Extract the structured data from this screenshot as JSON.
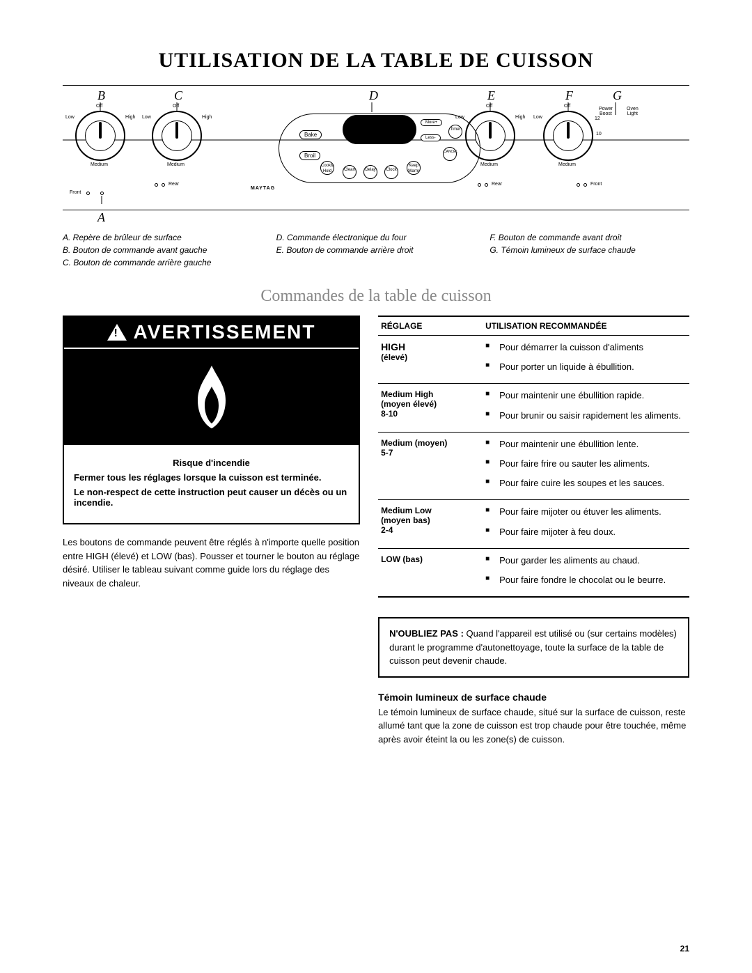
{
  "title": "UTILISATION DE LA TABLE DE CUISSON",
  "diagram": {
    "labels": {
      "A": "A",
      "B": "B",
      "C": "C",
      "D": "D",
      "E": "E",
      "F": "F",
      "G": "G"
    },
    "knob_text": {
      "off": "Off",
      "low": "Low",
      "high": "High",
      "medium": "Medium"
    },
    "center": {
      "bake": "Bake",
      "broil": "Broil",
      "cook_hold": "Cook&\nHold",
      "clean": "Clean",
      "delay": "Delay",
      "clock": "Clock",
      "keep_warm": "Keep\nWarm",
      "cancel": "CANCEL",
      "more": "More+",
      "less": "Less-",
      "timer": "Timer",
      "brand": "MAYTAG"
    },
    "right_labels": {
      "power_boost": "Power\nBoost",
      "oven_light": "Oven\nLight"
    },
    "bottom": {
      "front": "Front",
      "rear": "Rear"
    }
  },
  "legend": {
    "A": "A. Repère de brûleur de surface",
    "B": "B. Bouton de commande avant gauche",
    "C": "C. Bouton de commande arrière gauche",
    "D": "D. Commande électronique du four",
    "E": "E. Bouton de commande arrière droit",
    "F": "F. Bouton de commande avant droit",
    "G": "G. Témoin lumineux de surface chaude"
  },
  "subsection_title": "Commandes de la table de cuisson",
  "warning": {
    "header": "AVERTISSEMENT",
    "risk": "Risque d'incendie",
    "line1": "Fermer tous les réglages lorsque la cuisson est terminée.",
    "line2": "Le non-respect de cette instruction peut causer un décès ou un incendie."
  },
  "body_para": "Les boutons de commande peuvent être réglés à n'importe quelle position entre HIGH (élevé) et LOW (bas). Pousser et tourner le bouton au réglage désiré. Utiliser le tableau suivant comme guide lors du réglage des niveaux de chaleur.",
  "table": {
    "headers": {
      "setting": "RÉGLAGE",
      "use": "UTILISATION RECOMMANDÉE"
    },
    "rows": [
      {
        "setting_main": "HIGH",
        "setting_sub": "(élevé)",
        "uses": [
          "Pour démarrer la cuisson d'aliments",
          "Pour porter un liquide à ébullition."
        ]
      },
      {
        "setting_main": "Medium High",
        "setting_sub": "(moyen élevé)\n8-10",
        "uses": [
          "Pour maintenir une ébullition rapide.",
          "Pour brunir ou saisir rapidement les aliments."
        ]
      },
      {
        "setting_main": "Medium (moyen)",
        "setting_sub": "5-7",
        "uses": [
          "Pour maintenir une ébullition lente.",
          "Pour faire frire ou sauter les aliments.",
          "Pour faire cuire les soupes et les sauces."
        ]
      },
      {
        "setting_main": "Medium Low",
        "setting_sub": "(moyen bas)\n2-4",
        "uses": [
          "Pour faire mijoter ou étuver les aliments.",
          "Pour faire mijoter à feu doux."
        ]
      },
      {
        "setting_main": "LOW (bas)",
        "setting_sub": "",
        "uses": [
          "Pour garder les aliments au chaud.",
          "Pour faire fondre le chocolat ou le beurre."
        ]
      }
    ]
  },
  "note": {
    "bold": "N'OUBLIEZ PAS : ",
    "text": "Quand l'appareil est utilisé ou (sur certains modèles) durant le programme d'autonettoyage, toute la surface de la table de cuisson peut devenir chaude."
  },
  "hot_surface": {
    "head": "Témoin lumineux de surface chaude",
    "para": "Le témoin lumineux de surface chaude, situé sur la surface de cuisson, reste allumé tant que la zone de cuisson est trop chaude pour être touchée, même après avoir éteint la ou les zone(s) de cuisson."
  },
  "page_number": "21"
}
